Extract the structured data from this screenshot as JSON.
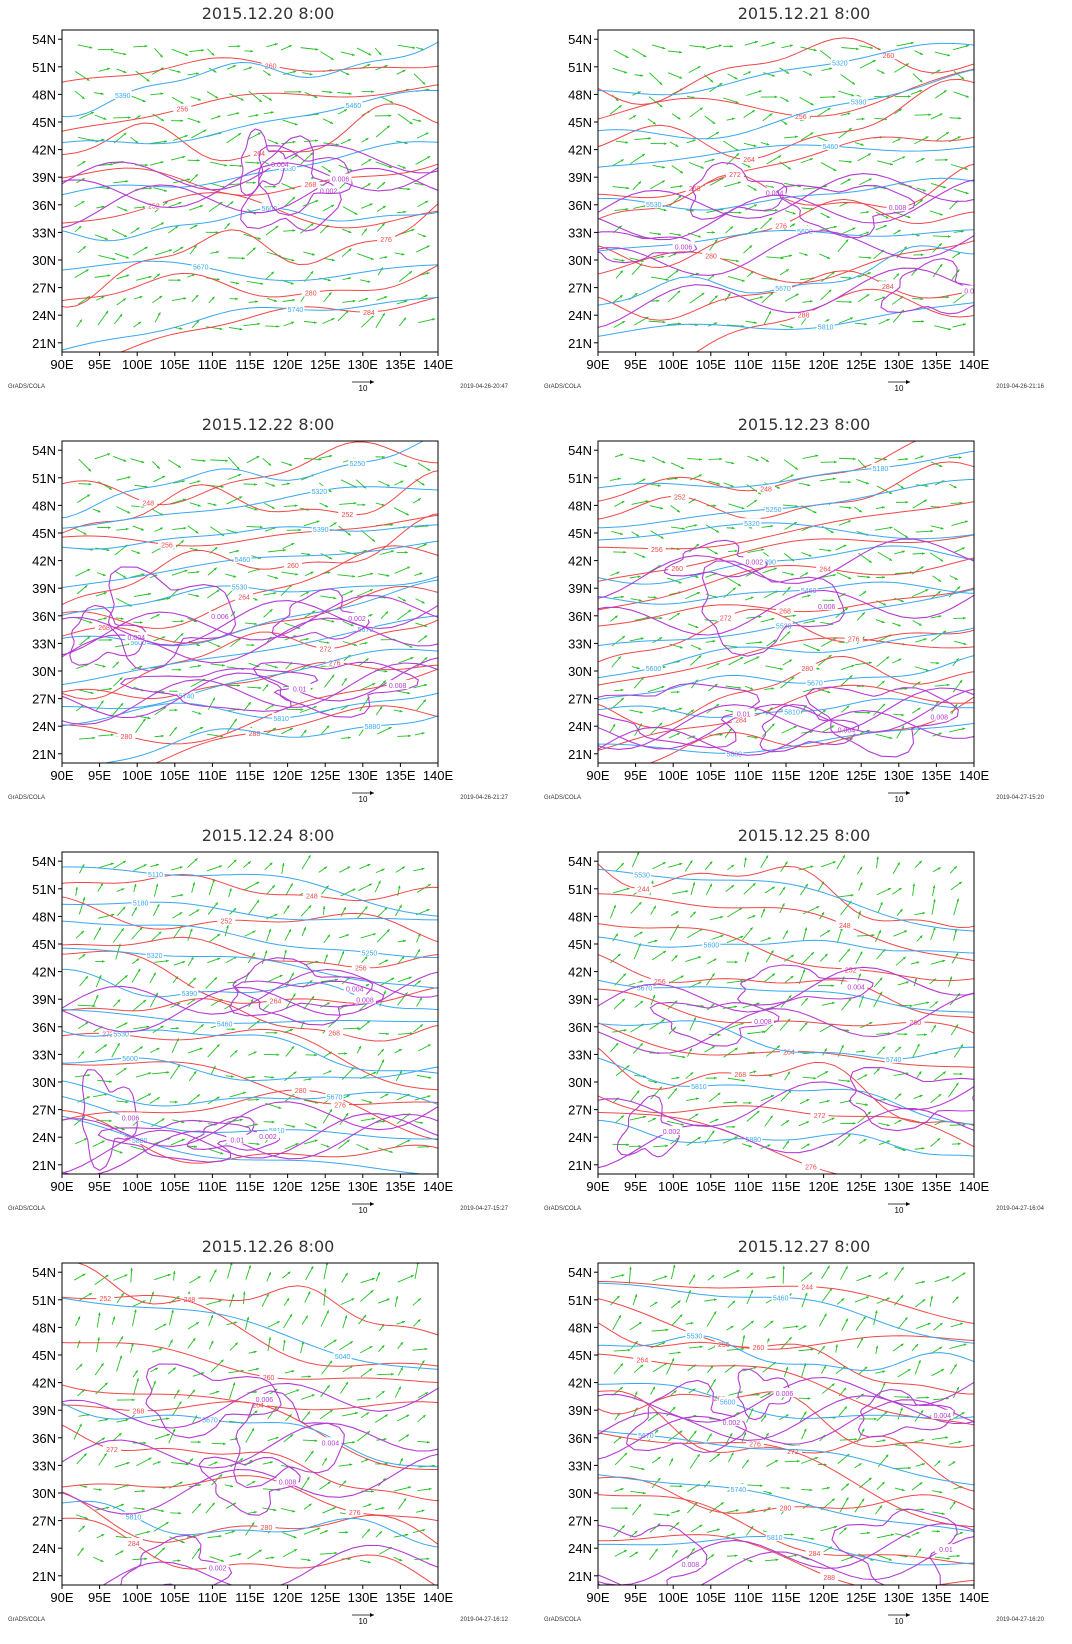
{
  "chart_data": {
    "type": "contour_wind_map_grid",
    "panels": [
      {
        "title": "2015.12.20 8:00",
        "timestamp": "2019-04-26-20:47",
        "isohypse_labels": [
          "5390",
          "5460",
          "5530",
          "5600",
          "5670",
          "5740"
        ],
        "isotherm_labels": [
          "260",
          "256",
          "264",
          "268",
          "252",
          "276",
          "280",
          "284"
        ],
        "humidity_labels": [
          "0.002",
          "0.004",
          "0.006"
        ]
      },
      {
        "title": "2015.12.21 8:00",
        "timestamp": "2019-04-26-21:16",
        "isohypse_labels": [
          "5320",
          "5390",
          "5460",
          "5530",
          "5600",
          "5670",
          "5810"
        ],
        "isotherm_labels": [
          "260",
          "256",
          "264",
          "268",
          "272",
          "276",
          "280",
          "284",
          "288"
        ],
        "humidity_labels": [
          "0.002",
          "0.004",
          "0.006",
          "0.008"
        ]
      },
      {
        "title": "2015.12.22 8:00",
        "timestamp": "2019-04-26-21:27",
        "isohypse_labels": [
          "5250",
          "5320",
          "5390",
          "5460",
          "5530",
          "5600",
          "5670",
          "5740",
          "5810",
          "5880"
        ],
        "isotherm_labels": [
          "248",
          "252",
          "256",
          "260",
          "264",
          "268",
          "272",
          "276",
          "280",
          "288"
        ],
        "humidity_labels": [
          "0.002",
          "0.004",
          "0.006",
          "0.008",
          "0.01"
        ]
      },
      {
        "title": "2015.12.23 8:00",
        "timestamp": "2019-04-27-15:20",
        "isohypse_labels": [
          "5180",
          "5250",
          "5320",
          "5390",
          "5460",
          "5530",
          "5600",
          "5670",
          "5810",
          "5880"
        ],
        "isotherm_labels": [
          "248",
          "252",
          "256",
          "260",
          "264",
          "268",
          "272",
          "276",
          "280",
          "284",
          "288"
        ],
        "humidity_labels": [
          "0.002",
          "0.004",
          "0.006",
          "0.008",
          "0.01"
        ]
      },
      {
        "title": "2015.12.24 8:00",
        "timestamp": "2019-04-27-15:27",
        "isohypse_labels": [
          "5110",
          "5180",
          "5250",
          "5320",
          "5390",
          "5460",
          "5530",
          "5600",
          "5670",
          "5810",
          "5880"
        ],
        "isotherm_labels": [
          "248",
          "252",
          "256",
          "264",
          "268",
          "272",
          "276",
          "280",
          "284"
        ],
        "humidity_labels": [
          "0.002",
          "0.004",
          "0.006",
          "0.008",
          "0.01"
        ]
      },
      {
        "title": "2015.12.25 8:00",
        "timestamp": "2019-04-27-16:04",
        "isohypse_labels": [
          "5530",
          "5600",
          "5670",
          "5740",
          "5810",
          "5880"
        ],
        "isotherm_labels": [
          "244",
          "248",
          "252",
          "256",
          "260",
          "264",
          "268",
          "272",
          "276"
        ],
        "humidity_labels": [
          "0.002",
          "0.004",
          "0.006",
          "0.008"
        ]
      },
      {
        "title": "2015.12.26 8:00",
        "timestamp": "2019-04-27-16:12",
        "isohypse_labels": [
          "5040",
          "5670",
          "5810"
        ],
        "isotherm_labels": [
          "248",
          "252",
          "260",
          "264",
          "268",
          "272",
          "276",
          "280",
          "284"
        ],
        "humidity_labels": [
          "0.002",
          "0.004",
          "0.006",
          "0.008"
        ]
      },
      {
        "title": "2015.12.27 8:00",
        "timestamp": "2019-04-27-16:20",
        "isohypse_labels": [
          "5460",
          "5530",
          "5600",
          "5670",
          "5740",
          "5810"
        ],
        "isotherm_labels": [
          "244",
          "256",
          "260",
          "264",
          "268",
          "272",
          "276",
          "280",
          "284",
          "288"
        ],
        "humidity_labels": [
          "0.002",
          "0.004",
          "0.006",
          "0.008",
          "0.01"
        ]
      }
    ],
    "lat_ticks": [
      "54N",
      "51N",
      "48N",
      "45N",
      "42N",
      "39N",
      "36N",
      "33N",
      "30N",
      "27N",
      "24N",
      "21N"
    ],
    "lon_ticks": [
      "90E",
      "95E",
      "100E",
      "105E",
      "110E",
      "115E",
      "120E",
      "125E",
      "130E",
      "135E",
      "140E"
    ],
    "xlim": [
      90,
      140
    ],
    "ylim": [
      20,
      55
    ],
    "wind_reference": "10",
    "footer_left": "GrADS/COLA",
    "colors": {
      "isohypse": "#3aa8f0",
      "isotherm": "#f04848",
      "humidity": "#b43cd2",
      "wind": "#22c022",
      "axis": "#000000"
    }
  }
}
